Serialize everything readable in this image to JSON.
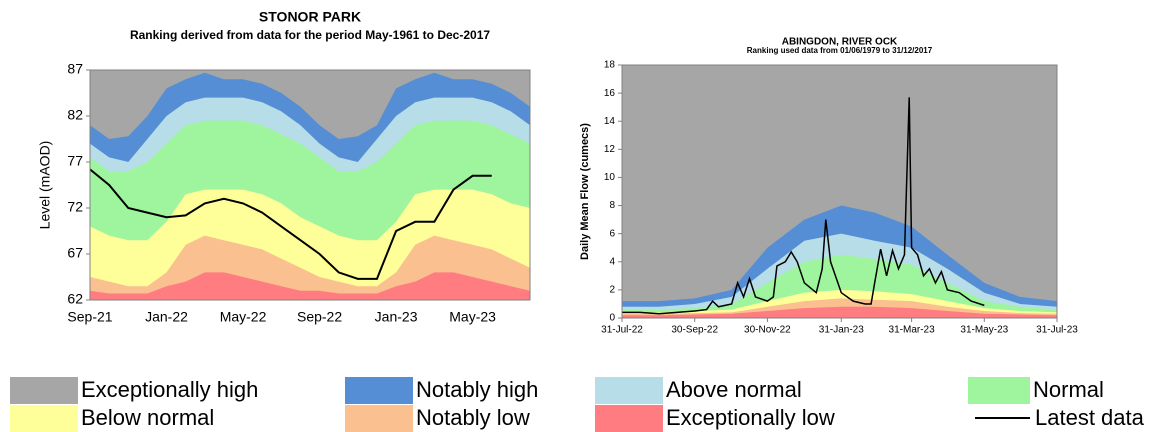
{
  "legend": [
    {
      "name": "Exceptionally high",
      "color": "#a6a6a6"
    },
    {
      "name": "Notably high",
      "color": "#558ed5"
    },
    {
      "name": "Above normal",
      "color": "#b7dde8"
    },
    {
      "name": "Normal",
      "color": "#9ef59e"
    },
    {
      "name": "Below normal",
      "color": "#ffff99"
    },
    {
      "name": "Notably low",
      "color": "#fac090"
    },
    {
      "name": "Exceptionally low",
      "color": "#ff7c80"
    },
    {
      "name": "Latest data",
      "color": "#000000"
    }
  ],
  "chart_data": [
    {
      "type": "band",
      "title": "STONOR PARK",
      "subtitle": "Ranking derived from data for the period May-1961 to Dec-2017",
      "y_label": "Level (mAOD)",
      "categories": [
        "Sep-21",
        null,
        null,
        null,
        "Jan-22",
        null,
        null,
        null,
        "May-22",
        null,
        null,
        null,
        "Sep-22",
        null,
        null,
        null,
        "Jan-23",
        null,
        null,
        null,
        "May-23",
        null,
        null,
        null
      ],
      "band_tops": [
        {
          "values": [
            81,
            79.5,
            79.8,
            82,
            85,
            86,
            86.7,
            86,
            86,
            85.5,
            84.5,
            83,
            81,
            79.5,
            79.8,
            81,
            85,
            86,
            86.7,
            86,
            86,
            85.5,
            84.5,
            83
          ]
        },
        {
          "values": [
            79,
            77.5,
            77,
            79.5,
            82,
            83.5,
            84,
            84,
            84,
            83.5,
            82.5,
            81,
            79,
            77.5,
            77,
            79.5,
            82,
            83.5,
            84,
            84,
            84,
            83.5,
            82.5,
            81
          ]
        },
        {
          "values": [
            77.5,
            76,
            76,
            77,
            79,
            81,
            81.5,
            81.5,
            81.5,
            81,
            80,
            79,
            77.5,
            76,
            76,
            77,
            79,
            81,
            81.5,
            81.5,
            81.5,
            81,
            80,
            79
          ]
        },
        {
          "values": [
            70,
            69,
            68.5,
            68.5,
            70.5,
            73.5,
            74,
            74,
            74,
            73.5,
            72.5,
            71,
            70,
            69,
            68.5,
            68.5,
            70.5,
            73.5,
            74,
            74,
            74,
            73.5,
            72.5,
            72
          ]
        },
        {
          "values": [
            64.5,
            64,
            63.5,
            63.5,
            65,
            68,
            69,
            68.5,
            68,
            67.5,
            66.5,
            65.5,
            64.5,
            64,
            63.5,
            63.5,
            65,
            68,
            69,
            68.5,
            68,
            67.5,
            66.5,
            65.5
          ]
        },
        {
          "values": [
            63,
            62.7,
            62.7,
            62.7,
            63.5,
            64,
            65,
            65,
            64.5,
            64,
            63.5,
            63,
            63,
            62.7,
            62.7,
            62.7,
            63.5,
            64,
            65,
            65,
            64.5,
            64,
            63.5,
            63
          ]
        }
      ],
      "line": {
        "values": [
          76.2,
          74.5,
          72,
          71.5,
          71,
          71.2,
          72.5,
          73,
          72.5,
          71.5,
          70,
          68.5,
          67,
          65,
          64.3,
          64.3,
          69.5,
          70.5,
          70.5,
          74,
          75.5,
          75.5,
          null,
          null
        ]
      },
      "ylim": [
        62,
        87
      ],
      "yticks": [
        62,
        67,
        72,
        77,
        82,
        87
      ]
    },
    {
      "type": "band",
      "title": "ABINGDON, RIVER OCK",
      "subtitle": "Ranking used data from 01/06/1979 to 31/12/2017",
      "y_label": "Daily Mean Flow (cumecs)",
      "x": [
        "31-Jul-22",
        "31-Aug-22",
        "30-Sep-22",
        "31-Oct-22",
        "30-Nov-22",
        "31-Dec-22",
        "31-Jan-23",
        "28-Feb-23",
        "31-Mar-23",
        "30-Apr-23",
        "31-May-23",
        "30-Jun-23",
        "31-Jul-23"
      ],
      "band_tops": [
        {
          "values": [
            1.2,
            1.2,
            1.4,
            2.0,
            5.0,
            7.0,
            8.0,
            7.5,
            6.5,
            4.5,
            2.5,
            1.5,
            1.2
          ]
        },
        {
          "values": [
            0.8,
            0.8,
            1.0,
            1.5,
            3.5,
            5.5,
            6.0,
            5.5,
            5.0,
            3.5,
            1.8,
            1.0,
            0.8
          ]
        },
        {
          "values": [
            0.6,
            0.6,
            0.7,
            1.0,
            2.5,
            4.0,
            4.5,
            4.2,
            3.8,
            2.5,
            1.2,
            0.8,
            0.6
          ]
        },
        {
          "values": [
            0.4,
            0.4,
            0.5,
            0.6,
            1.2,
            1.8,
            2.0,
            1.9,
            1.7,
            1.2,
            0.7,
            0.5,
            0.4
          ]
        },
        {
          "values": [
            0.3,
            0.3,
            0.35,
            0.4,
            0.8,
            1.2,
            1.4,
            1.3,
            1.2,
            0.8,
            0.5,
            0.35,
            0.3
          ]
        },
        {
          "values": [
            0.2,
            0.2,
            0.25,
            0.3,
            0.5,
            0.7,
            0.8,
            0.8,
            0.7,
            0.5,
            0.3,
            0.25,
            0.2
          ]
        }
      ],
      "line": {
        "x": [
          "31-Jul-22",
          "15-Aug-22",
          "31-Aug-22",
          "15-Sep-22",
          "30-Sep-22",
          "10-Oct-22",
          "15-Oct-22",
          "20-Oct-22",
          "31-Oct-22",
          "5-Nov-22",
          "10-Nov-22",
          "15-Nov-22",
          "20-Nov-22",
          "30-Nov-22",
          "5-Dec-22",
          "8-Dec-22",
          "15-Dec-22",
          "20-Dec-22",
          "25-Dec-22",
          "31-Dec-22",
          "10-Jan-23",
          "15-Jan-23",
          "18-Jan-23",
          "22-Jan-23",
          "31-Jan-23",
          "10-Feb-23",
          "20-Feb-23",
          "25-Feb-23",
          "28-Feb-23",
          "5-Mar-23",
          "10-Mar-23",
          "15-Mar-23",
          "20-Mar-23",
          "25-Mar-23",
          "29-Mar-23",
          "31-Mar-23",
          "5-Apr-23",
          "10-Apr-23",
          "15-Apr-23",
          "20-Apr-23",
          "25-Apr-23",
          "30-Apr-23",
          "10-May-23",
          "20-May-23",
          "31-May-23"
        ],
        "values": [
          0.4,
          0.4,
          0.3,
          0.4,
          0.5,
          0.6,
          1.2,
          0.8,
          1.0,
          2.5,
          1.5,
          2.8,
          1.5,
          1.2,
          1.5,
          3.7,
          4.0,
          4.7,
          4.0,
          2.5,
          1.8,
          3.5,
          7.0,
          4.0,
          1.8,
          1.2,
          1.0,
          1.0,
          2.5,
          4.9,
          3.0,
          4.8,
          3.5,
          4.5,
          15.7,
          5.0,
          4.5,
          3.0,
          3.5,
          2.5,
          3.3,
          2.0,
          1.8,
          1.2,
          0.9
        ]
      },
      "xlim": [
        "31-Jul-22",
        "31-Jul-23"
      ],
      "xticks": [
        "31-Jul-22",
        "30-Sep-22",
        "30-Nov-22",
        "31-Jan-23",
        "31-Mar-23",
        "31-May-23",
        "31-Jul-23"
      ],
      "ylim": [
        0,
        18
      ],
      "yticks": [
        0,
        2,
        4,
        6,
        8,
        10,
        12,
        14,
        16,
        18
      ]
    }
  ]
}
